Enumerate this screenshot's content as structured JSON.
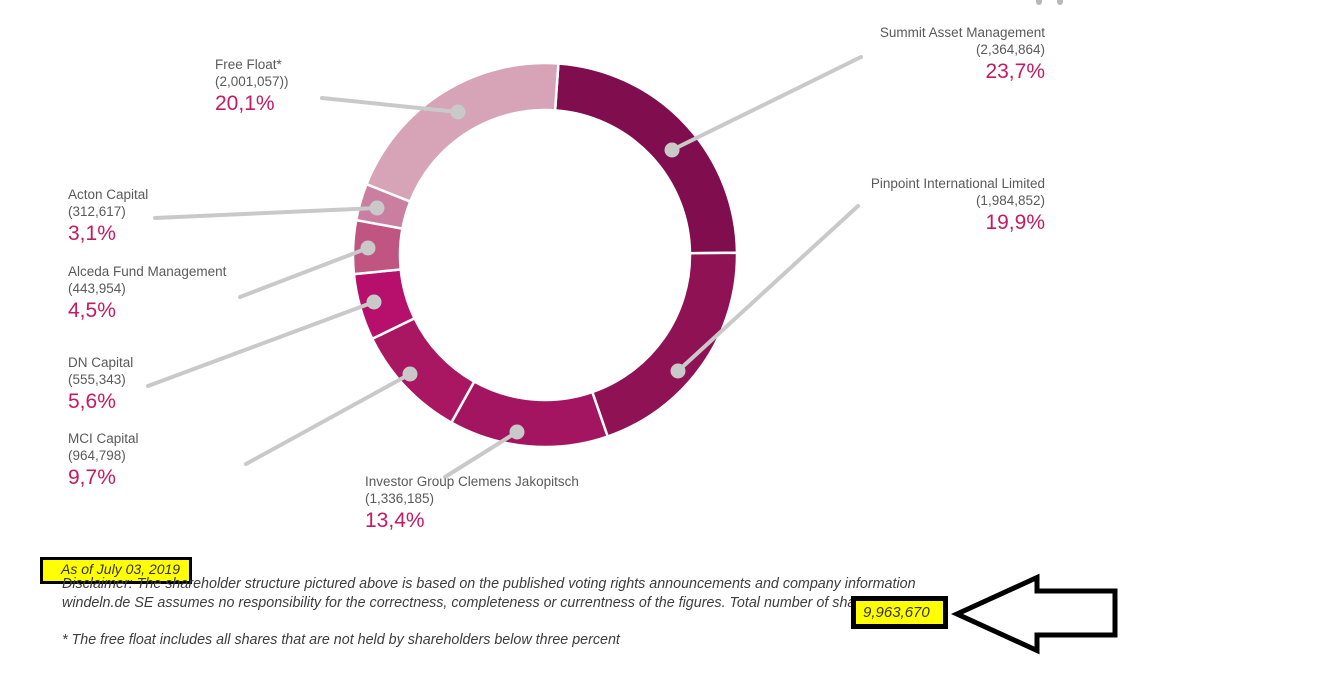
{
  "page": {
    "as_of_label": "As of July 03, 2019",
    "disclaimer_line1": "Disclaimer: The shareholder structure pictured above is based on the published voting rights announcements and company information",
    "disclaimer_line2": "windeln.de SE assumes no responsibility for the correctness, completeness or currentness of the figures. Total number of shares:",
    "total_shares": "9,963,670",
    "footnote": "* The free float includes all shares that are not held by shareholders below three percent"
  },
  "colors": {
    "label_gray": "#5a5a5a",
    "pct_magenta": "#c41a62",
    "leader_gray": "#c9c9c9",
    "highlight_yellow": "#ffff00",
    "slice_gap_white": "#ffffff"
  },
  "chart_data": {
    "type": "pie",
    "subtype": "donut",
    "direction": "clockwise",
    "start_at": "12-o-clock",
    "legend_position": "around",
    "segments": [
      {
        "label": "Summit Asset Management",
        "shares_display": "(2,364,864)",
        "pct_display": "23,7%",
        "value": 23.7,
        "color": "#800e4e"
      },
      {
        "label": "Pinpoint International Limited",
        "shares_display": "(1,984,852)",
        "pct_display": "19,9%",
        "value": 19.9,
        "color": "#8f1255"
      },
      {
        "label": "Investor Group Clemens Jakopitsch",
        "shares_display": "(1,336,185)",
        "pct_display": "13,4%",
        "value": 13.4,
        "color": "#a31560"
      },
      {
        "label": "MCI Capital",
        "shares_display": "(964,798)",
        "pct_display": "9,7%",
        "value": 9.7,
        "color": "#a91763"
      },
      {
        "label": "DN Capital",
        "shares_display": "(555,343)",
        "pct_display": "5,6%",
        "value": 5.6,
        "color": "#b6106c"
      },
      {
        "label": "Alceda Fund Management",
        "shares_display": "(443,954)",
        "pct_display": "4,5%",
        "value": 4.5,
        "color": "#c05581"
      },
      {
        "label": "Acton Capital",
        "shares_display": "(312,617)",
        "pct_display": "3,1%",
        "value": 3.1,
        "color": "#ca7fa0"
      },
      {
        "label": "Free Float*",
        "shares_display": "(2,001,057))",
        "pct_display": "20,1%",
        "value": 20.1,
        "color": "#d7a3b6"
      }
    ]
  }
}
